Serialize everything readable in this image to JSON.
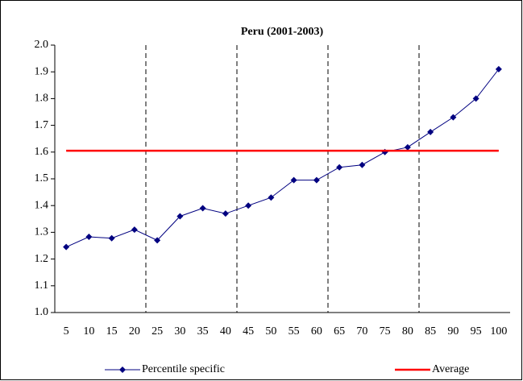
{
  "chart_data": {
    "type": "line",
    "title": "Peru (2001-2003)",
    "categories": [
      "5",
      "10",
      "15",
      "20",
      "25",
      "30",
      "35",
      "40",
      "45",
      "50",
      "55",
      "60",
      "65",
      "70",
      "75",
      "80",
      "85",
      "90",
      "95",
      "100"
    ],
    "series": [
      {
        "name": "Percentile specific",
        "color": "#000080",
        "values": [
          1.245,
          1.283,
          1.278,
          1.31,
          1.27,
          1.36,
          1.39,
          1.37,
          1.4,
          1.43,
          1.495,
          1.495,
          1.543,
          1.552,
          1.6,
          1.618,
          1.675,
          1.73,
          1.8,
          1.91
        ]
      },
      {
        "name": "Average",
        "color": "#ff0000",
        "values": [
          1.605,
          1.605,
          1.605,
          1.605,
          1.605,
          1.605,
          1.605,
          1.605,
          1.605,
          1.605,
          1.605,
          1.605,
          1.605,
          1.605,
          1.605,
          1.605,
          1.605,
          1.605,
          1.605,
          1.605
        ]
      }
    ],
    "ylim": [
      1.0,
      2.0
    ],
    "yticks": [
      {
        "value": 1.0,
        "label": "1.0"
      },
      1.1,
      1.2,
      1.3,
      1.4,
      1.5,
      1.6,
      1.7,
      1.8,
      1.9,
      {
        "value": 2.0,
        "label": "2.0"
      }
    ]
  }
}
